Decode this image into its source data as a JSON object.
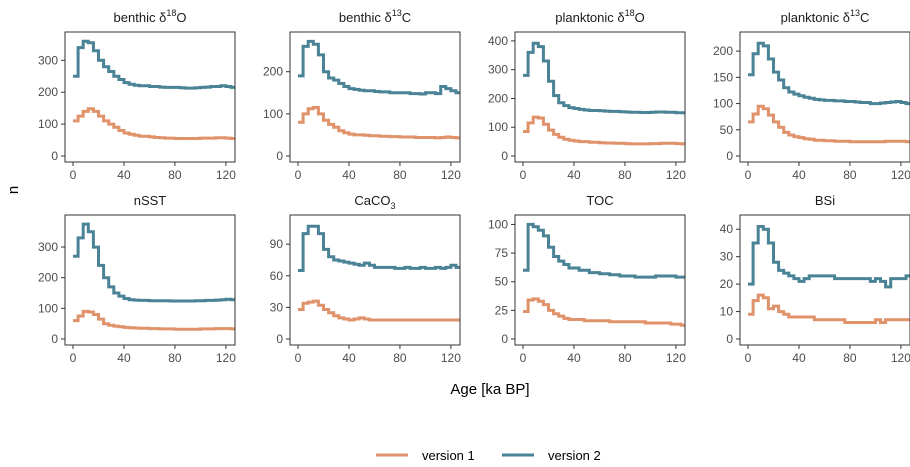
{
  "chart_data": {
    "type": "line",
    "step": true,
    "xlabel": "Age [ka BP]",
    "ylabel": "n",
    "legend_position": "bottom",
    "legend": [
      {
        "name": "version 1",
        "color": "#E0926B"
      },
      {
        "name": "version 2",
        "color": "#4A8296"
      }
    ],
    "x": [
      0,
      4,
      8,
      12,
      16,
      20,
      24,
      28,
      32,
      36,
      40,
      44,
      48,
      52,
      56,
      60,
      64,
      68,
      72,
      76,
      80,
      84,
      88,
      92,
      96,
      100,
      104,
      108,
      112,
      116,
      120,
      124
    ],
    "xlim": [
      0,
      124
    ],
    "xticks": [
      0,
      40,
      80,
      120
    ],
    "panels": [
      {
        "title_pre": "benthic δ",
        "title_sup": "18",
        "title_post": "O",
        "ylim": [
          0,
          370
        ],
        "yticks": [
          0,
          100,
          200,
          300
        ],
        "series": [
          {
            "name": "version 1",
            "values": [
              110,
              125,
              140,
              148,
              140,
              125,
              110,
              100,
              90,
              80,
              72,
              68,
              65,
              62,
              62,
              60,
              58,
              57,
              56,
              56,
              55,
              55,
              55,
              55,
              55,
              56,
              56,
              56,
              57,
              57,
              56,
              55
            ]
          },
          {
            "name": "version 2",
            "values": [
              250,
              340,
              360,
              355,
              330,
              300,
              280,
              265,
              250,
              240,
              230,
              225,
              222,
              220,
              220,
              218,
              218,
              216,
              215,
              215,
              215,
              214,
              213,
              213,
              214,
              215,
              216,
              218,
              218,
              220,
              218,
              215
            ]
          }
        ]
      },
      {
        "title_pre": "benthic δ",
        "title_sup": "13",
        "title_post": "C",
        "ylim": [
          0,
          280
        ],
        "yticks": [
          0,
          100,
          200
        ],
        "series": [
          {
            "name": "version 1",
            "values": [
              80,
              100,
              112,
              115,
              100,
              85,
              75,
              68,
              60,
              55,
              52,
              50,
              50,
              49,
              48,
              48,
              47,
              47,
              46,
              46,
              45,
              45,
              45,
              44,
              44,
              44,
              44,
              43,
              44,
              45,
              44,
              43
            ]
          },
          {
            "name": "version 2",
            "values": [
              190,
              260,
              272,
              265,
              240,
              200,
              185,
              180,
              172,
              165,
              160,
              158,
              156,
              155,
              155,
              153,
              152,
              152,
              150,
              150,
              150,
              150,
              148,
              148,
              147,
              150,
              150,
              148,
              165,
              160,
              155,
              150
            ]
          }
        ]
      },
      {
        "title_pre": "planktonic δ",
        "title_sup": "18",
        "title_post": "O",
        "ylim": [
          0,
          410
        ],
        "yticks": [
          0,
          100,
          200,
          300,
          400
        ],
        "series": [
          {
            "name": "version 1",
            "values": [
              85,
              115,
              135,
              132,
              110,
              90,
              75,
              65,
              58,
              55,
              52,
              50,
              50,
              48,
              48,
              46,
              45,
              45,
              44,
              44,
              43,
              42,
              42,
              42,
              42,
              43,
              43,
              44,
              44,
              44,
              43,
              42
            ]
          },
          {
            "name": "version 2",
            "values": [
              280,
              360,
              392,
              380,
              330,
              260,
              210,
              185,
              175,
              168,
              165,
              162,
              160,
              158,
              158,
              157,
              156,
              155,
              155,
              154,
              153,
              152,
              152,
              151,
              151,
              152,
              153,
              153,
              152,
              152,
              150,
              150
            ]
          }
        ]
      },
      {
        "title_pre": "planktonic δ",
        "title_sup": "13",
        "title_post": "C",
        "ylim": [
          0,
          225
        ],
        "yticks": [
          0,
          50,
          100,
          150,
          200
        ],
        "series": [
          {
            "name": "version 1",
            "values": [
              65,
              80,
              95,
              90,
              78,
              65,
              55,
              45,
              40,
              37,
              35,
              33,
              32,
              30,
              30,
              29,
              29,
              28,
              28,
              28,
              27,
              27,
              27,
              27,
              27,
              27,
              27,
              28,
              28,
              28,
              28,
              27
            ]
          },
          {
            "name": "version 2",
            "values": [
              155,
              195,
              215,
              210,
              185,
              160,
              145,
              130,
              122,
              118,
              115,
              112,
              110,
              108,
              107,
              106,
              106,
              105,
              105,
              104,
              104,
              103,
              102,
              102,
              100,
              100,
              101,
              102,
              103,
              104,
              102,
              100
            ]
          }
        ]
      },
      {
        "title_pre": "nSST",
        "title_sup": "",
        "title_post": "",
        "ylim": [
          0,
          385
        ],
        "yticks": [
          0,
          100,
          200,
          300
        ],
        "series": [
          {
            "name": "version 1",
            "values": [
              60,
              75,
              90,
              88,
              80,
              65,
              50,
              45,
              42,
              40,
              38,
              37,
              36,
              35,
              35,
              34,
              34,
              33,
              33,
              33,
              32,
              32,
              32,
              32,
              32,
              33,
              33,
              33,
              34,
              34,
              34,
              33
            ]
          },
          {
            "name": "version 2",
            "values": [
              270,
              330,
              375,
              350,
              300,
              240,
              200,
              170,
              150,
              140,
              132,
              128,
              127,
              126,
              126,
              125,
              125,
              125,
              125,
              124,
              124,
              124,
              124,
              124,
              125,
              125,
              126,
              126,
              127,
              128,
              130,
              128
            ]
          }
        ]
      },
      {
        "title_pre": "CaCO",
        "title_sub": "3",
        "title_post": "",
        "ylim": [
          0,
          112
        ],
        "yticks": [
          0,
          30,
          60,
          90
        ],
        "series": [
          {
            "name": "version 1",
            "values": [
              28,
              34,
              35,
              36,
              32,
              28,
              25,
              22,
              20,
              19,
              18,
              19,
              20,
              19,
              18,
              18,
              18,
              18,
              18,
              18,
              18,
              18,
              18,
              18,
              18,
              18,
              18,
              18,
              18,
              18,
              18,
              18
            ]
          },
          {
            "name": "version 2",
            "values": [
              65,
              100,
              107,
              107,
              100,
              85,
              78,
              75,
              74,
              73,
              72,
              71,
              70,
              72,
              70,
              68,
              68,
              68,
              68,
              67,
              67,
              68,
              67,
              67,
              68,
              67,
              67,
              68,
              67,
              68,
              70,
              68
            ]
          }
        ]
      },
      {
        "title_pre": "TOC",
        "title_sup": "",
        "title_post": "",
        "ylim": [
          0,
          103
        ],
        "yticks": [
          0,
          25,
          50,
          75,
          100
        ],
        "series": [
          {
            "name": "version 1",
            "values": [
              24,
              34,
              35,
              33,
              30,
              25,
              22,
              20,
              18,
              17,
              17,
              17,
              16,
              16,
              16,
              16,
              16,
              15,
              15,
              15,
              15,
              15,
              15,
              15,
              14,
              14,
              14,
              14,
              14,
              13,
              13,
              12
            ]
          },
          {
            "name": "version 2",
            "values": [
              60,
              100,
              98,
              95,
              90,
              80,
              72,
              68,
              65,
              62,
              62,
              60,
              60,
              58,
              58,
              57,
              57,
              56,
              56,
              55,
              55,
              55,
              54,
              54,
              54,
              54,
              55,
              55,
              55,
              55,
              54,
              54
            ]
          }
        ]
      },
      {
        "title_pre": "BSi",
        "title_sup": "",
        "title_post": "",
        "ylim": [
          0,
          43
        ],
        "yticks": [
          0,
          10,
          20,
          30,
          40
        ],
        "series": [
          {
            "name": "version 1",
            "values": [
              9,
              14,
              16,
              15,
              11,
              12,
              10,
              9,
              8,
              8,
              8,
              8,
              8,
              7,
              7,
              7,
              7,
              7,
              7,
              6,
              6,
              6,
              6,
              6,
              6,
              7,
              6,
              7,
              7,
              7,
              7,
              7
            ]
          },
          {
            "name": "version 2",
            "values": [
              20,
              35,
              41,
              40,
              35,
              28,
              25,
              24,
              23,
              22,
              21,
              22,
              23,
              23,
              23,
              23,
              23,
              22,
              22,
              22,
              22,
              22,
              22,
              22,
              21,
              22,
              21,
              19,
              22,
              22,
              22,
              23
            ]
          }
        ]
      }
    ]
  }
}
